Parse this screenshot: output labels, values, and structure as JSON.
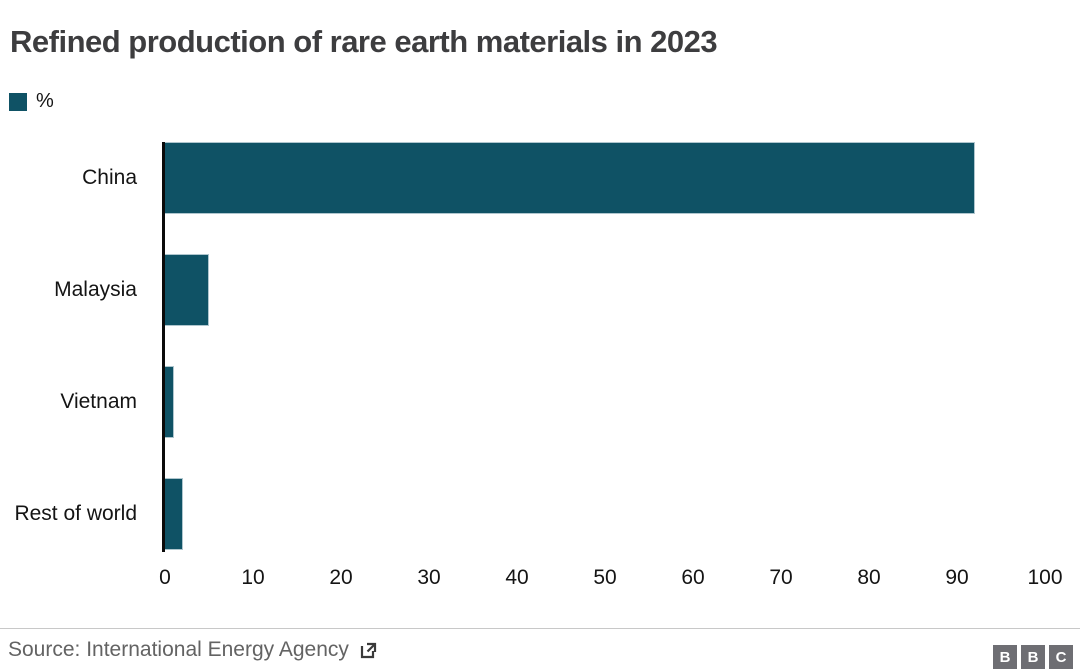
{
  "chart_data": {
    "type": "bar",
    "orientation": "horizontal",
    "title": "Refined production of rare earth materials in 2023",
    "legend": {
      "label": "%",
      "position": "top-left"
    },
    "categories": [
      "China",
      "Malaysia",
      "Vietnam",
      "Rest of world"
    ],
    "values": [
      92,
      5,
      1,
      2
    ],
    "xlabel": "",
    "ylabel": "",
    "xlim": [
      0,
      100
    ],
    "xticks": [
      0,
      10,
      20,
      30,
      40,
      50,
      60,
      70,
      80,
      90,
      100
    ],
    "grid": false,
    "bar_color": "#0f5265",
    "axis_color": "#0a0a0a"
  },
  "footer": {
    "source_label": "Source: International Energy Agency",
    "external_link_icon": "external-link-icon",
    "logo_letters": [
      "B",
      "B",
      "C"
    ]
  }
}
